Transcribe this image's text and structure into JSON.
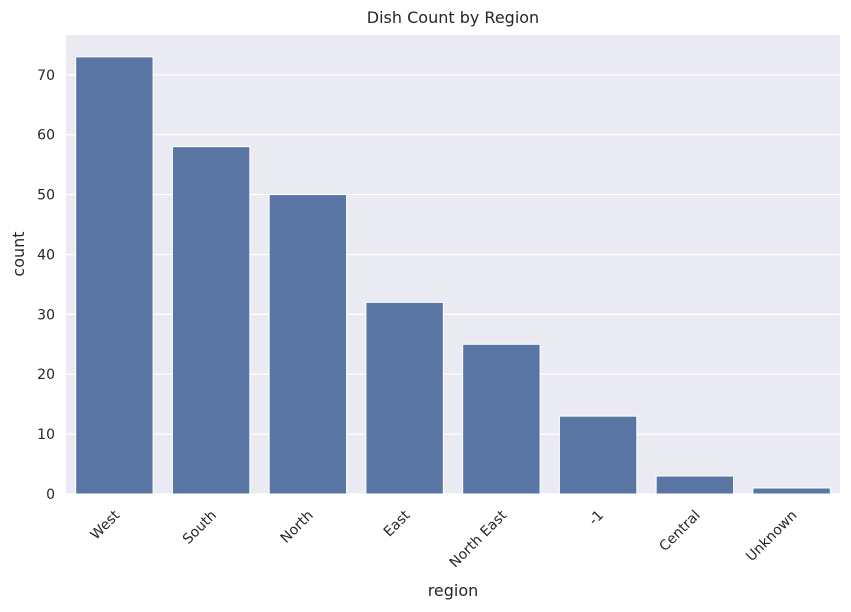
{
  "chart_data": {
    "type": "bar",
    "title": "Dish Count by Region",
    "xlabel": "region",
    "ylabel": "count",
    "categories": [
      "West",
      "South",
      "North",
      "East",
      "North East",
      "-1",
      "Central",
      "Unknown"
    ],
    "values": [
      73,
      58,
      50,
      32,
      25,
      13,
      3,
      1
    ],
    "ylim": [
      0,
      76.65
    ],
    "yticks": [
      0,
      10,
      20,
      30,
      40,
      50,
      60,
      70
    ],
    "grid": true,
    "bar_color": "#5875a4",
    "background_color": "#eaeaf2",
    "grid_color": "#ffffff"
  }
}
